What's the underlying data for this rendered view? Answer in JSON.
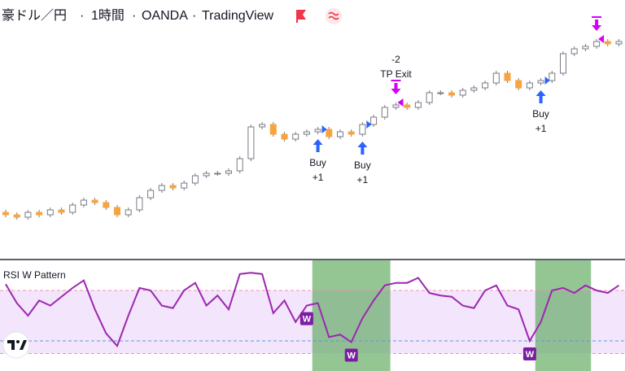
{
  "chart_data": {
    "type": "candlestick",
    "header": {
      "symbol": "豪ドル／円",
      "interval": "1時間",
      "broker": "OANDA",
      "platform": "TradingView",
      "separator": "·"
    },
    "ylim": [
      0,
      100
    ],
    "up_color": "#ffffff",
    "down_color": "#f7a440",
    "border_color": "#787b86",
    "open": [
      13,
      12,
      11,
      13,
      12,
      14,
      13,
      16,
      18,
      17,
      15,
      12,
      14,
      19,
      22,
      24,
      23,
      25,
      28,
      29,
      29,
      30,
      35,
      48,
      49,
      45,
      43,
      45,
      46,
      47,
      44,
      46,
      45,
      49,
      52,
      56,
      57,
      56,
      58,
      62,
      62,
      61,
      63,
      64,
      66,
      70,
      67,
      64,
      66,
      67,
      70,
      78,
      80,
      81,
      83,
      82
    ],
    "high": [
      14,
      13,
      14,
      14,
      15,
      15,
      17,
      19,
      19,
      18,
      16,
      15,
      20,
      23,
      25,
      25,
      26,
      29,
      30,
      30,
      31,
      36,
      49,
      50,
      50,
      46,
      46,
      47,
      48,
      48,
      47,
      47,
      50,
      53,
      57,
      58,
      58,
      59,
      63,
      63,
      63,
      64,
      65,
      67,
      71,
      71,
      68,
      67,
      68,
      71,
      79,
      81,
      82,
      84,
      84,
      84
    ],
    "low": [
      11,
      10,
      10,
      11,
      11,
      12,
      12,
      15,
      16,
      14,
      11,
      11,
      13,
      18,
      21,
      22,
      22,
      24,
      27,
      28,
      28,
      29,
      34,
      47,
      44,
      42,
      42,
      44,
      45,
      43,
      43,
      44,
      44,
      48,
      51,
      55,
      55,
      55,
      57,
      61,
      60,
      60,
      62,
      63,
      65,
      66,
      63,
      63,
      65,
      66,
      69,
      77,
      79,
      80,
      81,
      81
    ],
    "close": [
      12,
      11,
      13,
      12,
      14,
      13,
      16,
      18,
      17,
      15,
      12,
      14,
      19,
      22,
      24,
      23,
      25,
      28,
      29,
      29,
      30,
      35,
      48,
      49,
      45,
      43,
      45,
      46,
      47,
      44,
      46,
      45,
      49,
      52,
      56,
      57,
      56,
      58,
      62,
      62,
      61,
      63,
      64,
      66,
      70,
      67,
      64,
      66,
      67,
      70,
      78,
      80,
      81,
      83,
      82,
      83
    ],
    "annotations": [
      {
        "kind": "buy",
        "candle": 28,
        "lines": [
          "Buy",
          "+1"
        ]
      },
      {
        "kind": "buy",
        "candle": 32,
        "lines": [
          "Buy",
          "+1"
        ]
      },
      {
        "kind": "exit",
        "candle": 35,
        "lines": [
          "-2",
          "TP Exit"
        ]
      },
      {
        "kind": "buy",
        "candle": 48,
        "lines": [
          "Buy",
          "+1"
        ]
      },
      {
        "kind": "exit",
        "candle": 53,
        "lines": []
      }
    ],
    "indicator": {
      "title": "RSI W Pattern",
      "color": "#9c27b0",
      "ylim": [
        10,
        90
      ],
      "levels": [
        {
          "value": 70,
          "color": "#f48fb1"
        },
        {
          "value": 30,
          "color": "#5b9bd5"
        },
        {
          "value": 20,
          "color": "#f48fb1"
        }
      ],
      "band": [
        20,
        70
      ],
      "band_color": "#f3e5fb",
      "values": [
        75,
        60,
        50,
        62,
        58,
        65,
        72,
        78,
        55,
        36,
        26,
        50,
        72,
        70,
        58,
        56,
        70,
        76,
        58,
        66,
        55,
        83,
        84,
        83,
        52,
        62,
        45,
        58,
        60,
        33,
        35,
        29,
        48,
        62,
        74,
        76,
        76,
        80,
        68,
        66,
        65,
        58,
        56,
        70,
        74,
        58,
        55,
        30,
        45,
        70,
        72,
        68,
        74,
        70,
        68,
        74
      ],
      "marker_text": "W",
      "markers": [
        27,
        31,
        47
      ],
      "zone_color": "#5aa85a",
      "zones": [
        {
          "from": 28,
          "to": 34
        },
        {
          "from": 48,
          "to": 52
        }
      ]
    }
  }
}
